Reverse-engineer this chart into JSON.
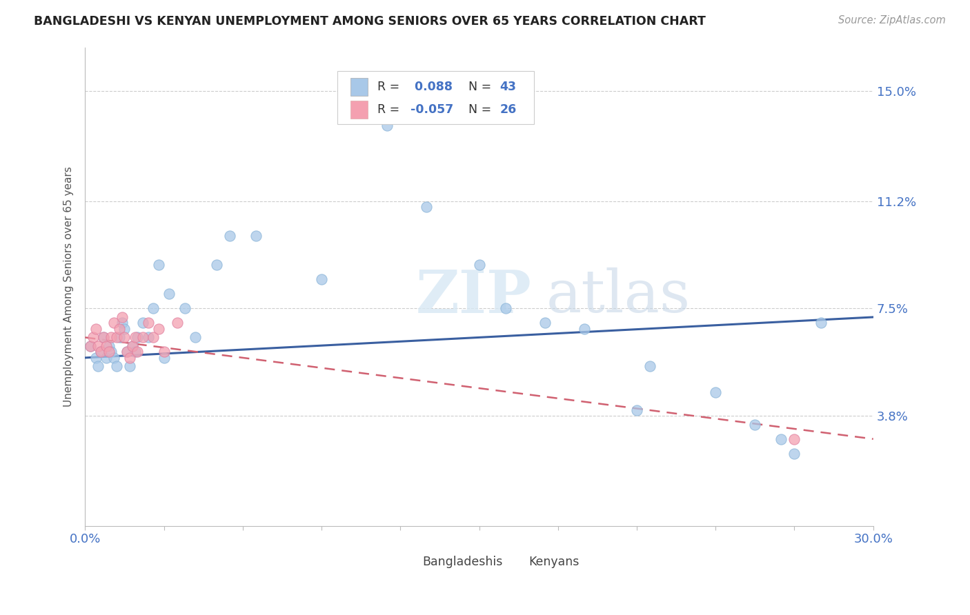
{
  "title": "BANGLADESHI VS KENYAN UNEMPLOYMENT AMONG SENIORS OVER 65 YEARS CORRELATION CHART",
  "source": "Source: ZipAtlas.com",
  "ylabel": "Unemployment Among Seniors over 65 years",
  "xlim": [
    0.0,
    0.3
  ],
  "ylim": [
    0.0,
    0.165
  ],
  "xticks": [
    0.0,
    0.03,
    0.06,
    0.09,
    0.12,
    0.15,
    0.18,
    0.21,
    0.24,
    0.27,
    0.3
  ],
  "ytick_positions": [
    0.038,
    0.075,
    0.112,
    0.15
  ],
  "ytick_labels": [
    "3.8%",
    "7.5%",
    "11.2%",
    "15.0%"
  ],
  "bangladeshi_color": "#a8c8e8",
  "kenyan_color": "#f4a0b0",
  "trend_bangladeshi_color": "#3a5fa0",
  "trend_kenyan_color": "#d06070",
  "bangladeshi_x": [
    0.002,
    0.004,
    0.005,
    0.006,
    0.007,
    0.008,
    0.009,
    0.01,
    0.011,
    0.012,
    0.013,
    0.014,
    0.015,
    0.016,
    0.017,
    0.018,
    0.019,
    0.02,
    0.022,
    0.024,
    0.026,
    0.028,
    0.03,
    0.032,
    0.038,
    0.042,
    0.05,
    0.055,
    0.065,
    0.09,
    0.115,
    0.13,
    0.15,
    0.16,
    0.175,
    0.19,
    0.21,
    0.215,
    0.24,
    0.255,
    0.265,
    0.27,
    0.28
  ],
  "bangladeshi_y": [
    0.062,
    0.058,
    0.055,
    0.06,
    0.065,
    0.058,
    0.062,
    0.06,
    0.058,
    0.055,
    0.065,
    0.07,
    0.068,
    0.06,
    0.055,
    0.062,
    0.06,
    0.065,
    0.07,
    0.065,
    0.075,
    0.09,
    0.058,
    0.08,
    0.075,
    0.065,
    0.09,
    0.1,
    0.1,
    0.085,
    0.138,
    0.11,
    0.09,
    0.075,
    0.07,
    0.068,
    0.04,
    0.055,
    0.046,
    0.035,
    0.03,
    0.025,
    0.07
  ],
  "kenyan_x": [
    0.002,
    0.003,
    0.004,
    0.005,
    0.006,
    0.007,
    0.008,
    0.009,
    0.01,
    0.011,
    0.012,
    0.013,
    0.014,
    0.015,
    0.016,
    0.017,
    0.018,
    0.019,
    0.02,
    0.022,
    0.024,
    0.026,
    0.028,
    0.03,
    0.035,
    0.27
  ],
  "kenyan_y": [
    0.062,
    0.065,
    0.068,
    0.062,
    0.06,
    0.065,
    0.062,
    0.06,
    0.065,
    0.07,
    0.065,
    0.068,
    0.072,
    0.065,
    0.06,
    0.058,
    0.062,
    0.065,
    0.06,
    0.065,
    0.07,
    0.065,
    0.068,
    0.06,
    0.07,
    0.03
  ],
  "watermark_zip": "ZIP",
  "watermark_atlas": "atlas",
  "background_color": "#ffffff",
  "grid_color": "#cccccc",
  "trend_b_x0": 0.0,
  "trend_b_y0": 0.058,
  "trend_b_x1": 0.3,
  "trend_b_y1": 0.072,
  "trend_k_x0": 0.0,
  "trend_k_y0": 0.065,
  "trend_k_x1": 0.3,
  "trend_k_y1": 0.03
}
